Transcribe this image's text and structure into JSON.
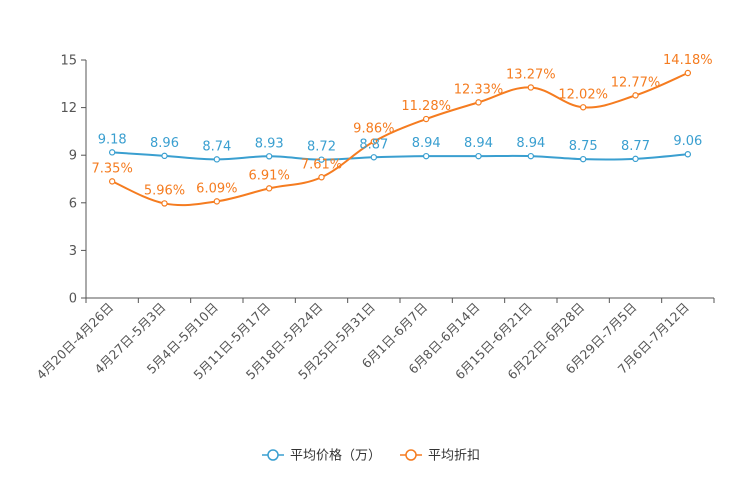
{
  "chart_data": {
    "type": "line",
    "title": "",
    "xlabel": "",
    "ylabel": "",
    "ylim": [
      0,
      15
    ],
    "yticks": [
      0,
      3,
      6,
      9,
      12,
      15
    ],
    "grid": false,
    "legend_position": "bottom-center",
    "categories": [
      "4月20日-4月26日",
      "4月27日-5月3日",
      "5月4日-5月10日",
      "5月11日-5月17日",
      "5月18日-5月24日",
      "5月25日-5月31日",
      "6月1日-6月7日",
      "6月8日-6月14日",
      "6月15日-6月21日",
      "6月22日-6月28日",
      "6月29日-7月5日",
      "7月6日-7月12日"
    ],
    "series": [
      {
        "name": "平均价格（万）",
        "color": "#3a9fd0",
        "values": [
          9.18,
          8.96,
          8.74,
          8.93,
          8.72,
          8.87,
          8.94,
          8.94,
          8.94,
          8.75,
          8.77,
          9.06
        ],
        "labels": [
          "9.18",
          "8.96",
          "8.74",
          "8.93",
          "8.72",
          "8.87",
          "8.94",
          "8.94",
          "8.94",
          "8.75",
          "8.77",
          "9.06"
        ]
      },
      {
        "name": "平均折扣",
        "color": "#f57c20",
        "values": [
          7.35,
          5.96,
          6.09,
          6.91,
          7.61,
          9.86,
          11.28,
          12.33,
          13.27,
          12.02,
          12.77,
          14.18
        ],
        "labels": [
          "7.35%",
          "5.96%",
          "6.09%",
          "6.91%",
          "7.61%",
          "9.86%",
          "11.28%",
          "12.33%",
          "13.27%",
          "12.02%",
          "12.77%",
          "14.18%"
        ]
      }
    ]
  }
}
